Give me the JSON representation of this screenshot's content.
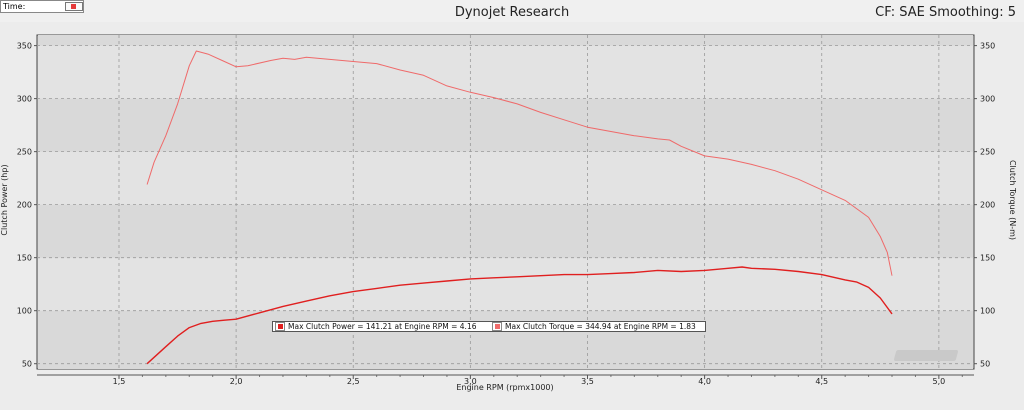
{
  "header": {
    "time_label": "Time:",
    "title": "Dynojet Research",
    "cf_text": "CF: SAE Smoothing: 5"
  },
  "chart_data": {
    "type": "line",
    "xlabel": "Engine RPM (rpmx1000)",
    "ylabel_left": "Clutch Power (hp)",
    "ylabel_right": "Clutch Torque (N-m)",
    "xlim": [
      1.15,
      5.15
    ],
    "ylim": [
      45,
      360
    ],
    "x_ticks": [
      "1,5",
      "2,0",
      "2,5",
      "3,0",
      "3,5",
      "4,0",
      "4,5",
      "5,0"
    ],
    "y_ticks": [
      "50",
      "100",
      "150",
      "200",
      "250",
      "300",
      "350"
    ],
    "y_ticks_right": [
      "50",
      "100",
      "150",
      "200",
      "250",
      "300",
      "350"
    ],
    "grid": true,
    "series": [
      {
        "name": "Clutch Power",
        "color": "#e01f1f",
        "x": [
          1.62,
          1.7,
          1.75,
          1.8,
          1.85,
          1.9,
          1.95,
          2.0,
          2.1,
          2.2,
          2.3,
          2.4,
          2.5,
          2.6,
          2.7,
          2.8,
          2.9,
          3.0,
          3.1,
          3.2,
          3.3,
          3.4,
          3.5,
          3.6,
          3.7,
          3.8,
          3.9,
          4.0,
          4.1,
          4.16,
          4.2,
          4.3,
          4.4,
          4.5,
          4.6,
          4.65,
          4.7,
          4.75,
          4.8
        ],
        "y": [
          50,
          66,
          76,
          84,
          88,
          90,
          91,
          92,
          98,
          104,
          109,
          114,
          118,
          121,
          124,
          126,
          128,
          130,
          131,
          132,
          133,
          134,
          134,
          135,
          136,
          138,
          137,
          138,
          140,
          141.21,
          140,
          139,
          137,
          134,
          129,
          127,
          122,
          112,
          97
        ]
      },
      {
        "name": "Clutch Torque",
        "color": "#ef6a6a",
        "x": [
          1.62,
          1.65,
          1.7,
          1.75,
          1.8,
          1.83,
          1.88,
          1.95,
          2.0,
          2.05,
          2.15,
          2.2,
          2.25,
          2.3,
          2.4,
          2.5,
          2.6,
          2.7,
          2.8,
          2.9,
          3.0,
          3.1,
          3.2,
          3.3,
          3.4,
          3.5,
          3.6,
          3.7,
          3.8,
          3.85,
          3.9,
          4.0,
          4.1,
          4.2,
          4.3,
          4.4,
          4.5,
          4.6,
          4.65,
          4.7,
          4.75,
          4.78,
          4.8
        ],
        "y": [
          219,
          240,
          265,
          295,
          331,
          344.94,
          342,
          335,
          330,
          331,
          336,
          338,
          337,
          339,
          337,
          335,
          333,
          327,
          322,
          312,
          306,
          301,
          295,
          287,
          280,
          273,
          269,
          265,
          262,
          261,
          255,
          246,
          243,
          238,
          232,
          224,
          214,
          204,
          196,
          188,
          170,
          155,
          133
        ]
      }
    ],
    "legend": [
      "Max Clutch Power = 141.21 at Engine RPM = 4.16",
      "Max Clutch Torque = 344.94 at Engine RPM = 1.83"
    ],
    "legend_placement": "bottom-center"
  },
  "logo_text": "Dynojet"
}
